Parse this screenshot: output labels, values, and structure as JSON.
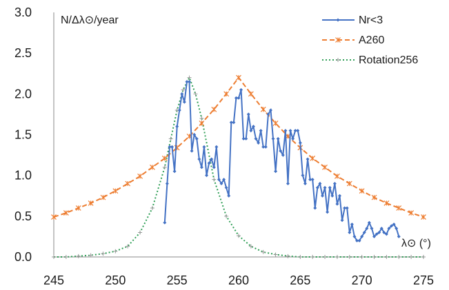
{
  "chart_data": {
    "type": "line",
    "title": "",
    "xlabel": "λ⊙ (°)",
    "ylabel": "N/Δλ⊙/year",
    "xlim": [
      245,
      275
    ],
    "ylim": [
      0,
      3
    ],
    "xticks": [
      "245",
      "250",
      "255",
      "260",
      "265",
      "270",
      "275"
    ],
    "yticks": [
      "0.0",
      "0.5",
      "1.0",
      "1.5",
      "2.0",
      "2.5",
      "3.0"
    ],
    "grid": false,
    "legend_position": "top-right",
    "series": [
      {
        "name": "Nr<3",
        "color": "#4472C4",
        "style": "solid-diamond",
        "x": [
          254.0,
          254.2,
          254.4,
          254.6,
          254.8,
          255.0,
          255.2,
          255.4,
          255.6,
          255.8,
          256.0,
          256.2,
          256.4,
          256.6,
          256.8,
          257.0,
          257.2,
          257.4,
          257.6,
          257.8,
          258.0,
          258.2,
          258.4,
          258.6,
          258.8,
          259.0,
          259.2,
          259.4,
          259.6,
          259.8,
          260.0,
          260.2,
          260.4,
          260.6,
          260.8,
          261.0,
          261.2,
          261.4,
          261.6,
          261.8,
          262.0,
          262.2,
          262.4,
          262.6,
          262.8,
          263.0,
          263.2,
          263.4,
          263.6,
          263.8,
          264.0,
          264.2,
          264.4,
          264.6,
          264.8,
          265.0,
          265.2,
          265.4,
          265.6,
          265.8,
          266.0,
          266.2,
          266.4,
          266.6,
          266.8,
          267.0,
          267.2,
          267.4,
          267.6,
          267.8,
          268.0,
          268.2,
          268.4,
          268.6,
          268.8,
          269.0,
          269.2,
          269.4,
          269.6,
          269.8,
          270.0,
          270.2,
          270.4,
          270.6,
          270.8,
          271.0,
          271.2,
          271.4,
          271.6,
          271.8,
          272.0,
          272.2,
          272.4,
          272.6,
          272.8,
          273.0
        ],
        "y": [
          0.42,
          0.9,
          1.35,
          1.35,
          1.05,
          1.6,
          1.8,
          2.0,
          1.9,
          2.15,
          2.15,
          1.3,
          1.5,
          1.45,
          1.2,
          1.1,
          1.35,
          1.0,
          1.15,
          1.2,
          1.1,
          1.35,
          0.95,
          0.9,
          0.95,
          0.85,
          0.75,
          1.65,
          1.65,
          1.95,
          1.95,
          2.05,
          1.45,
          1.45,
          1.75,
          1.55,
          1.6,
          1.45,
          1.4,
          1.55,
          1.35,
          1.35,
          1.75,
          1.8,
          1.45,
          1.05,
          1.45,
          1.3,
          1.25,
          1.55,
          0.9,
          1.55,
          1.45,
          1.55,
          1.55,
          1.4,
          1.0,
          0.9,
          1.2,
          0.95,
          0.95,
          0.6,
          0.85,
          0.9,
          0.75,
          0.85,
          0.55,
          0.85,
          0.75,
          0.9,
          0.65,
          0.75,
          0.45,
          0.6,
          0.6,
          0.3,
          0.4,
          0.25,
          0.2,
          0.2,
          0.25,
          0.3,
          0.35,
          0.42,
          0.35,
          0.25,
          0.28,
          0.3,
          0.35,
          0.3,
          0.28,
          0.35,
          0.38,
          0.4,
          0.35,
          0.25
        ]
      },
      {
        "name": "A260",
        "color": "#ED7D31",
        "style": "dashed-star",
        "x": [
          245,
          246,
          247,
          248,
          249,
          250,
          251,
          252,
          253,
          254,
          255,
          256,
          257,
          258,
          259,
          260,
          261,
          262,
          263,
          264,
          265,
          266,
          267,
          268,
          269,
          270,
          271,
          272,
          273,
          274,
          275
        ],
        "y": [
          0.49,
          0.54,
          0.6,
          0.66,
          0.73,
          0.81,
          0.9,
          0.99,
          1.1,
          1.21,
          1.34,
          1.48,
          1.64,
          1.81,
          2.0,
          2.2,
          2.0,
          1.81,
          1.64,
          1.48,
          1.34,
          1.21,
          1.1,
          0.99,
          0.9,
          0.81,
          0.73,
          0.66,
          0.6,
          0.54,
          0.49
        ]
      },
      {
        "name": "Rotation256",
        "color": "#2E9E55",
        "style": "dotted-plus",
        "x": [
          245,
          246,
          247,
          248,
          249,
          250,
          251,
          252,
          253,
          254,
          254.5,
          255,
          255.5,
          256,
          256.5,
          257,
          258,
          259,
          260,
          261,
          262,
          263,
          264,
          265,
          266,
          267,
          268,
          269,
          270,
          271,
          272,
          273,
          274,
          275
        ],
        "y": [
          0.0,
          0.0,
          0.01,
          0.02,
          0.04,
          0.07,
          0.13,
          0.3,
          0.6,
          1.1,
          1.45,
          1.8,
          2.05,
          2.2,
          2.0,
          1.7,
          0.95,
          0.5,
          0.26,
          0.13,
          0.06,
          0.03,
          0.01,
          0.0,
          0.0,
          0.0,
          0.0,
          0.0,
          0.0,
          0.0,
          0.0,
          0.0,
          0.0,
          0.0
        ]
      }
    ]
  }
}
